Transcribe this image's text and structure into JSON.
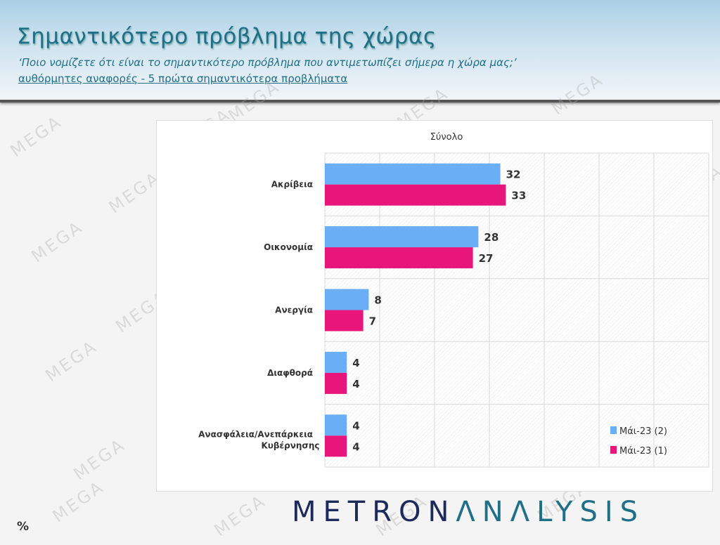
{
  "header": {
    "title": "Σημαντικότερο πρόβλημα της χώρας",
    "question": "‘Ποιο νομίζετε ότι  είναι το σημαντικότερο πρόβλημα που αντιμετωπίζει σήμερα η χώρα μας;’",
    "subtitle": "αυθόρμητες αναφορές - 5 πρώτα σημαντικότερα προβλήματα"
  },
  "watermark": "MEGA",
  "logo": {
    "part1": "METRON",
    "part2": "ΛNΛLYSIS"
  },
  "unit_label": "%",
  "chart_data": {
    "type": "bar",
    "orientation": "horizontal",
    "title": "Σύνολο",
    "categories": [
      "Ακρίβεια",
      "Οικονομία",
      "Ανεργία",
      "Διαφθορά",
      "Ανασφάλεια/Ανεπάρκεια Κυβέρνησης"
    ],
    "series": [
      {
        "name": "Μάι-23 (2)",
        "color": "#6aaef5",
        "values": [
          32,
          28,
          8,
          4,
          4
        ]
      },
      {
        "name": "Μάι-23 (1)",
        "color": "#e8157a",
        "values": [
          33,
          27,
          7,
          4,
          4
        ]
      }
    ],
    "xlim": [
      0,
      70
    ],
    "grid": true,
    "legend": "bottom-right",
    "data_labels": true
  }
}
